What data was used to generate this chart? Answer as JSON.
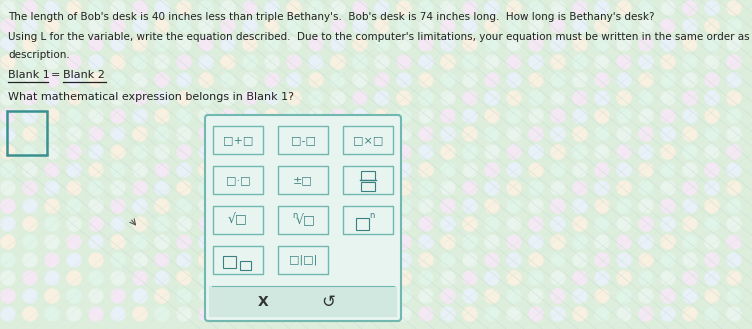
{
  "bg_color": "#ddeedd",
  "text_color": "#222222",
  "teal_color": "#3a8a80",
  "panel_bg": "#e8f4f0",
  "panel_border": "#70b8b0",
  "btn_face": "#e8f4f0",
  "btn_border": "#70b8b0",
  "bottom_bg": "#d0e8e0",
  "big_box_border": "#3a9090",
  "title_line1": "The length of Bob's desk is 40 inches less than triple Bethany's.  Bob's desk is 74 inches long.  How long is Bethany's desk?",
  "title_line2": "Using L for the variable, write the equation described.  Due to the computer's limitations, your equation must be written in the same order as th",
  "title_line2b": "description.",
  "blank1": "Blank 1",
  "eq": "=",
  "blank2": "Blank 2",
  "question": "What mathematical expression belongs in Blank 1?",
  "row1": [
    "□+□",
    "□-□",
    "□×□"
  ],
  "row2_labels": [
    "□·□",
    "±□"
  ],
  "row3_labels": [
    "√□",
    "√□",
    "□□"
  ],
  "row4_labels": [
    "□□",
    "□|□|"
  ],
  "bottom_labels": [
    "X",
    "↺"
  ],
  "dot_color": "#e8f0e8",
  "dot_color2": "#f0e8f0"
}
